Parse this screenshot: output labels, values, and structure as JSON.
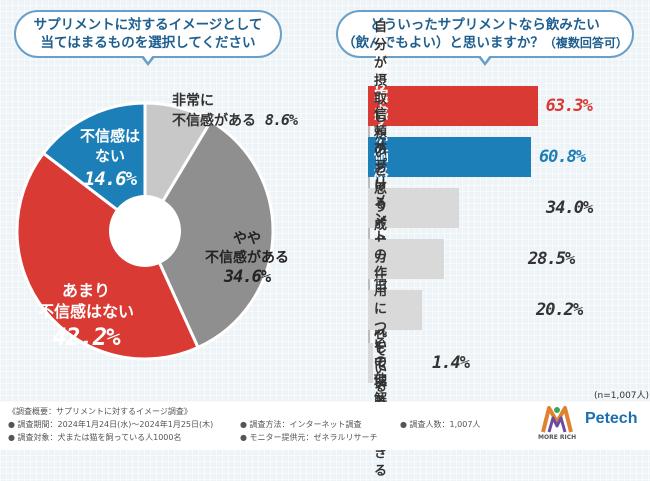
{
  "left_title": {
    "line1": "サプリメントに対するイメージとして",
    "line2": "当てはまるものを選択してください"
  },
  "right_title": {
    "line1": "どういったサプリメントなら飲みたい",
    "line2": "（飲んでもよい）と思いますか？",
    "line2b": "（複数回答可）"
  },
  "chart_data": [
    {
      "type": "pie",
      "title": "サプリメントに対するイメージとして当てはまるものを選択してください",
      "labels": [
        "非常に不信感がある",
        "やや不信感がある",
        "あまり不信感はない",
        "不信感はない"
      ],
      "label_lines": [
        [
          "非常に",
          "不信感がある"
        ],
        [
          "やや",
          "不信感がある"
        ],
        [
          "あまり",
          "不信感はない"
        ],
        [
          "不信感は",
          "ない"
        ]
      ],
      "values": [
        8.6,
        34.6,
        42.2,
        14.6
      ],
      "value_labels": [
        "8.6%",
        "34.6%",
        "42.2%",
        "14.6%"
      ],
      "colors": [
        "#c8c8c8",
        "#8f8f8f",
        "#d93a33",
        "#1c7fb8"
      ]
    },
    {
      "type": "bar",
      "orientation": "horizontal",
      "title": "どういったサプリメントなら飲みたい（飲んでもよい）と思いますか？（複数回答可）",
      "categories": [
        "効果が実感できる",
        "続けやすい\n価格帯である",
        "自分が摂取したいと思う\n成分で構成されている",
        "信頼のおけるメーカー\nが作成している",
        "サプリメントの作用に\nついて理解ができる",
        "その他"
      ],
      "values": [
        63.3,
        60.8,
        34.0,
        28.5,
        20.2,
        1.4
      ],
      "value_labels": [
        "63.3%",
        "60.8%",
        "34.0%",
        "28.5%",
        "20.2%",
        "1.4%"
      ],
      "colors": [
        "#d93a33",
        "#1c7fb8",
        "#d9d9d9",
        "#d9d9d9",
        "#d9d9d9",
        "#d9d9d9"
      ],
      "xlim": [
        0,
        100
      ]
    }
  ],
  "n_label": "(n=1,007人)",
  "footer": {
    "l1": "《調査概要：サプリメントに対するイメージ調査》",
    "l2": "● 調査期間：2024年1月24日(水)～2024年1月25日(木)",
    "l3": "● 調査対象：犬または猫を飼っている人1000名",
    "m1": "● 調査方法：インターネット調査",
    "m2": "● モニター提供元：ゼネラルリサーチ",
    "r1": "● 調査人数：1,007人",
    "logo_small": "MORE RICH",
    "brand": "Petech"
  }
}
